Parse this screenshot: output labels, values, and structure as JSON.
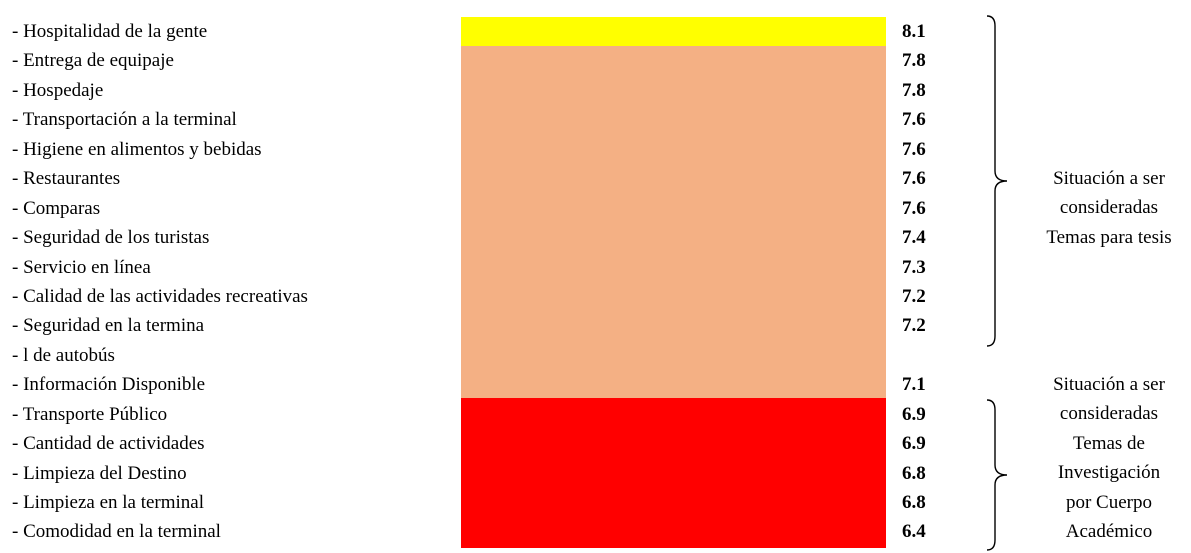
{
  "items": [
    {
      "label": "- Hospitalidad de la gente",
      "score": "8.1"
    },
    {
      "label": "- Entrega de equipaje",
      "score": "7.8"
    },
    {
      "label": "- Hospedaje",
      "score": "7.8"
    },
    {
      "label": "- Transportación a la terminal",
      "score": "7.6"
    },
    {
      "label": "- Higiene en alimentos y bebidas",
      "score": "7.6"
    },
    {
      "label": "- Restaurantes",
      "score": "7.6"
    },
    {
      "label": "- Comparas",
      "score": "7.6"
    },
    {
      "label": "- Seguridad de los turistas",
      "score": "7.4"
    },
    {
      "label": "- Servicio en línea",
      "score": "7.3"
    },
    {
      "label": "- Calidad de las actividades recreativas",
      "score": "7.2"
    },
    {
      "label": "- Seguridad en la termina",
      "score": "7.2"
    },
    {
      "label": "- l de autobús",
      "score": ""
    },
    {
      "label": "- Información Disponible",
      "score": "7.1"
    },
    {
      "label": "- Transporte Público",
      "score": "6.9"
    },
    {
      "label": "- Cantidad de actividades",
      "score": "6.9"
    },
    {
      "label": "- Limpieza del Destino",
      "score": "6.8"
    },
    {
      "label": "- Limpieza en la terminal",
      "score": "6.8"
    },
    {
      "label": "- Comodidad en la terminal",
      "score": "6.4"
    }
  ],
  "bands": [
    {
      "name": "yellow",
      "color": "#ffff00",
      "rows": 1
    },
    {
      "name": "salmon",
      "color": "#f4b084",
      "rows": 12
    },
    {
      "name": "red",
      "color": "#ff0000",
      "rows": 5
    }
  ],
  "group_thesis": {
    "lines": [
      "Situación a ser",
      "consideradas",
      "Temas para tesis"
    ]
  },
  "group_research": {
    "lines": [
      "Situación a ser",
      "consideradas",
      "Temas de",
      "Investigación",
      "por Cuerpo",
      "Académico"
    ]
  }
}
